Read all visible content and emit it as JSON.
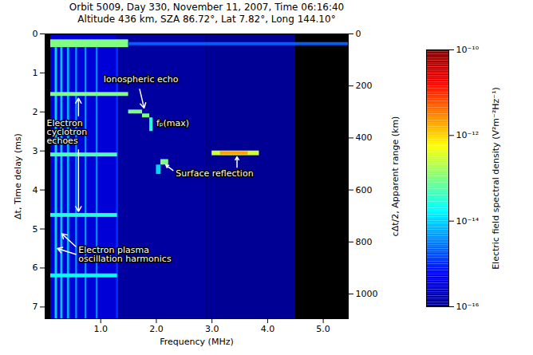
{
  "chart_data": {
    "type": "heatmap",
    "title": "Orbit 5009,   Day 330,  November 11, 2007,   Time 06:16:40",
    "subtitle": "Altitude 436 km,  SZA 86.72°,  Lat 7.82°,  Long 144.10°",
    "x_label": "Frequency (MHz)",
    "y_label": "Δt, Time delay (ms)",
    "y2_label": "cΔt/2, Apparent range (km)",
    "xlim": [
      0,
      5.45
    ],
    "xticks": [
      {
        "value": 1,
        "label": "1.0"
      },
      {
        "value": 2,
        "label": "2.0"
      },
      {
        "value": 3,
        "label": "3.0"
      },
      {
        "value": 4,
        "label": "4.0"
      },
      {
        "value": 5,
        "label": "5.0"
      }
    ],
    "ylim": [
      0,
      7.3
    ],
    "yticks": [
      0,
      1,
      2,
      3,
      4,
      5,
      6,
      7
    ],
    "y2lim": [
      0,
      1095
    ],
    "y2ticks": [
      0,
      200,
      400,
      600,
      800,
      1000
    ],
    "colorbar": {
      "label": "Electric field spectral density (V²m⁻²Hz⁻¹)",
      "range": [
        1e-16,
        1e-10
      ],
      "log": true,
      "ticks": [
        {
          "value": 1e-10,
          "label": "10⁻¹⁰"
        },
        {
          "value": 1e-12,
          "label": "10⁻¹²"
        },
        {
          "value": 1e-14,
          "label": "10⁻¹⁴"
        },
        {
          "value": 1e-16,
          "label": "10⁻¹⁶"
        }
      ]
    },
    "cells": [
      {
        "x1": 0.1,
        "x2": 1.3,
        "y1": 0,
        "y2": 7.3,
        "value": 3e-16
      },
      {
        "x1": 1.3,
        "x2": 2.9,
        "y1": 0,
        "y2": 7.3,
        "value": 1.3e-16
      },
      {
        "x1": 2.9,
        "x2": 4.5,
        "y1": 0,
        "y2": 7.3,
        "value": 1.1e-16
      },
      {
        "x1": 0.18,
        "x2": 0.22,
        "y1": 0.35,
        "y2": 7.3,
        "value": 1e-14
      },
      {
        "x1": 0.28,
        "x2": 0.32,
        "y1": 0.35,
        "y2": 7.3,
        "value": 8e-15
      },
      {
        "x1": 0.4,
        "x2": 0.44,
        "y1": 0.35,
        "y2": 7.3,
        "value": 6e-15
      },
      {
        "x1": 0.55,
        "x2": 0.58,
        "y1": 0.35,
        "y2": 7.3,
        "value": 5e-15
      },
      {
        "x1": 0.72,
        "x2": 0.75,
        "y1": 0.35,
        "y2": 7.3,
        "value": 5e-15
      },
      {
        "x1": 0.92,
        "x2": 0.95,
        "y1": 0.35,
        "y2": 7.3,
        "value": 4e-15
      },
      {
        "x1": 1.28,
        "x2": 1.32,
        "y1": 0.3,
        "y2": 7.3,
        "value": 1e-15
      },
      {
        "x1": 0.1,
        "x2": 1.5,
        "y1": 0.15,
        "y2": 0.35,
        "value": 1e-13
      },
      {
        "x1": 1.5,
        "x2": 5.45,
        "y1": 0.22,
        "y2": 0.3,
        "value": 2e-15
      },
      {
        "x1": 0.1,
        "x2": 1.5,
        "y1": 1.5,
        "y2": 1.6,
        "value": 1e-13
      },
      {
        "x1": 0.1,
        "x2": 1.3,
        "y1": 3.05,
        "y2": 3.15,
        "value": 5e-14
      },
      {
        "x1": 0.1,
        "x2": 1.3,
        "y1": 4.6,
        "y2": 4.7,
        "value": 3e-14
      },
      {
        "x1": 0.1,
        "x2": 1.3,
        "y1": 6.15,
        "y2": 6.25,
        "value": 2e-14
      },
      {
        "x1": 1.5,
        "x2": 1.75,
        "y1": 1.95,
        "y2": 2.05,
        "value": 1e-13
      },
      {
        "x1": 1.75,
        "x2": 1.88,
        "y1": 2.05,
        "y2": 2.15,
        "value": 1e-13
      },
      {
        "x1": 1.88,
        "x2": 1.94,
        "y1": 2.15,
        "y2": 2.5,
        "value": 3e-14
      },
      {
        "x1": 2.08,
        "x2": 2.22,
        "y1": 3.22,
        "y2": 3.36,
        "value": 1e-13
      },
      {
        "x1": 2.0,
        "x2": 2.08,
        "y1": 3.36,
        "y2": 3.6,
        "value": 1e-14
      },
      {
        "x1": 3.0,
        "x2": 3.85,
        "y1": 3.0,
        "y2": 3.12,
        "value": 3e-13
      },
      {
        "x1": 3.15,
        "x2": 3.65,
        "y1": 3.02,
        "y2": 3.1,
        "value": 2e-12
      }
    ],
    "annotations": [
      {
        "text": "Ionospheric echo",
        "x": 1.05,
        "y": 1.08,
        "arrows": [
          [
            1.7,
            1.42,
            1.78,
            1.9
          ]
        ]
      },
      {
        "text": "fₚ(max)",
        "x": 2.0,
        "y": 2.2,
        "arrows": []
      },
      {
        "text": "Surface reflection",
        "x": 2.35,
        "y": 3.5,
        "arrows": [
          [
            2.3,
            3.5,
            2.17,
            3.36
          ],
          [
            3.45,
            3.42,
            3.45,
            3.15
          ]
        ]
      },
      {
        "text": "Electron cyclotron echoes",
        "x": 0.03,
        "y": 2.2,
        "arrows": [
          [
            0.6,
            2.1,
            0.6,
            1.65
          ],
          [
            0.6,
            2.97,
            0.6,
            4.55
          ]
        ]
      },
      {
        "text": "Electron plasma oscillation harmonics",
        "x": 0.6,
        "y": 5.45,
        "arrows": [
          [
            0.55,
            5.45,
            0.3,
            5.12
          ],
          [
            0.55,
            5.65,
            0.22,
            5.5
          ]
        ]
      }
    ]
  }
}
